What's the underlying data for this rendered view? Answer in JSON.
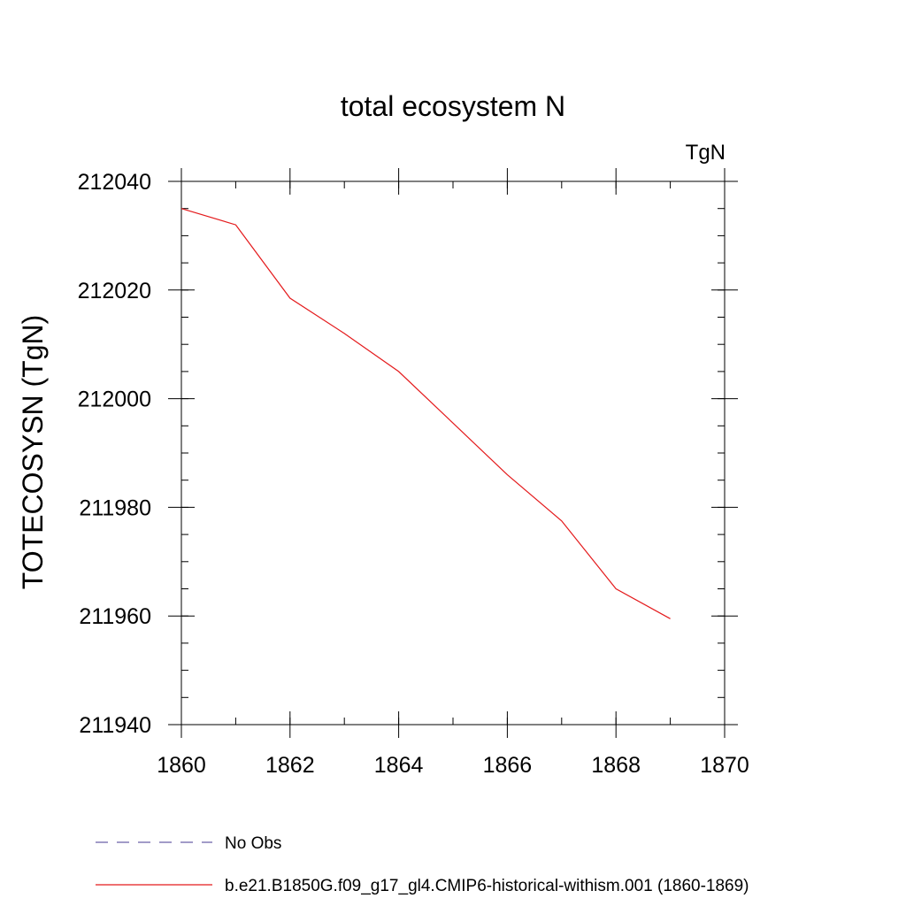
{
  "chart_data": {
    "type": "line",
    "title": "total ecosystem N",
    "units_label": "TgN",
    "ylabel": "TOTECOSYSN  (TgN)",
    "xlabel": "",
    "xlim": [
      1860,
      1870
    ],
    "ylim": [
      211940,
      212040
    ],
    "xticks": [
      1860,
      1862,
      1864,
      1866,
      1868,
      1870
    ],
    "yticks": [
      211940,
      211960,
      211980,
      212000,
      212020,
      212040
    ],
    "x_minor_step": 1,
    "y_minor_step": 5,
    "grid": false,
    "legend_position": "bottom-left",
    "series": [
      {
        "name": "No Obs",
        "style": "dashed",
        "color": "#6b5fa8",
        "x": [],
        "y": []
      },
      {
        "name": "b.e21.B1850G.f09_g17_gl4.CMIP6-historical-withism.001 (1860-1869)",
        "style": "solid",
        "color": "#e41a1c",
        "x": [
          1860,
          1861,
          1862,
          1863,
          1864,
          1865,
          1866,
          1867,
          1868,
          1869
        ],
        "y": [
          212035,
          212032,
          212018.5,
          212012,
          212005,
          211995.5,
          211986,
          211977.5,
          211965,
          211959.5
        ]
      }
    ]
  }
}
